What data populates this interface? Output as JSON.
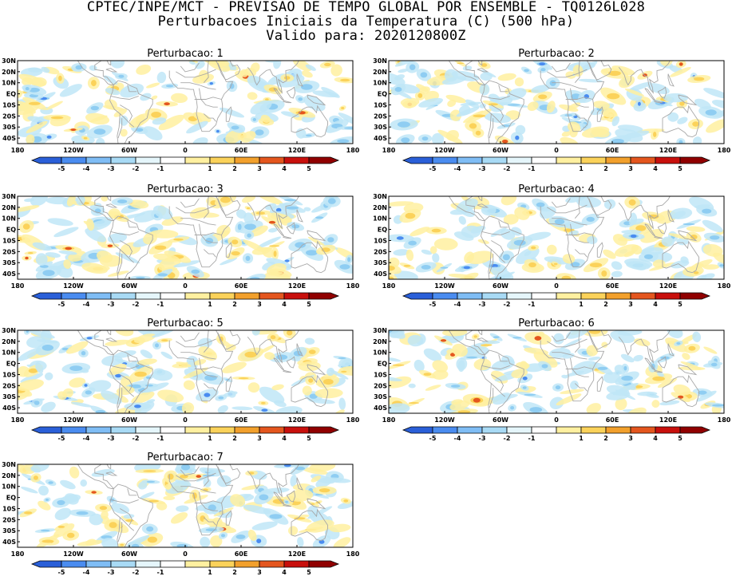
{
  "header": {
    "line1": "CPTEC/INPE/MCT - PREVISAO DE TEMPO GLOBAL POR ENSEMBLE - TQ0126L028",
    "line2": "Perturbacoes Iniciais da Temperatura (C) (500 hPa)",
    "line3": "Valido para: 2020120800Z"
  },
  "panels": [
    {
      "title": "Perturbacao: 1"
    },
    {
      "title": "Perturbacao: 2"
    },
    {
      "title": "Perturbacao: 3"
    },
    {
      "title": "Perturbacao: 4"
    },
    {
      "title": "Perturbacao: 5"
    },
    {
      "title": "Perturbacao: 6"
    },
    {
      "title": "Perturbacao: 7"
    }
  ],
  "map_axes": {
    "lat_labels": [
      "30N",
      "20N",
      "10N",
      "EQ",
      "10S",
      "20S",
      "30S",
      "40S"
    ],
    "lon_labels": [
      "180",
      "120W",
      "60W",
      "0",
      "60E",
      "120E",
      "180"
    ]
  },
  "colorbar": {
    "labels": [
      "-5",
      "-4",
      "-3",
      "-2",
      "-1",
      "1",
      "2",
      "3",
      "4",
      "5"
    ],
    "colors": [
      "#2a5fd8",
      "#4a8cf0",
      "#7fbdf5",
      "#a8daf5",
      "#e5f6fb",
      "#ffffff",
      "#fff0a0",
      "#fbd25a",
      "#f2a02c",
      "#e4561e",
      "#c8100c",
      "#900000"
    ]
  },
  "colors": {
    "negative_light": "#bfe6f7",
    "negative_mid": "#8fcdf2",
    "negative_strong": "#4a8cf0",
    "positive_light": "#fff0a0",
    "positive_mid": "#fbd25a",
    "positive_strong": "#e4561e",
    "coastline": "#a8a8a8"
  }
}
